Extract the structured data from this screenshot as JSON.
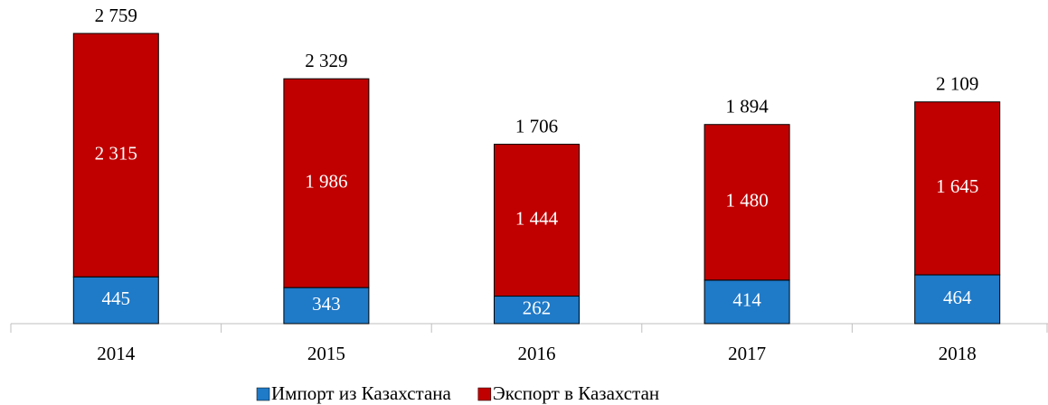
{
  "chart_data": {
    "type": "stacked_bar",
    "categories": [
      "2014",
      "2015",
      "2016",
      "2017",
      "2018"
    ],
    "series": [
      {
        "name": "Импорт из Казахстана",
        "color": "#1f7ac8",
        "values": [
          445,
          343,
          262,
          414,
          464
        ],
        "value_labels": [
          "445",
          "343",
          "262",
          "414",
          "464"
        ]
      },
      {
        "name": "Экспорт в Казахстан",
        "color": "#c00000",
        "values": [
          2315,
          1986,
          1444,
          1480,
          1645
        ],
        "value_labels": [
          "2 315",
          "1 986",
          "1 444",
          "1 480",
          "1 645"
        ]
      }
    ],
    "totals": [
      2759,
      2329,
      1706,
      1894,
      2109
    ],
    "total_labels": [
      "2 759",
      "2 329",
      "1 706",
      "1 894",
      "2 109"
    ],
    "legend": "bottom"
  }
}
